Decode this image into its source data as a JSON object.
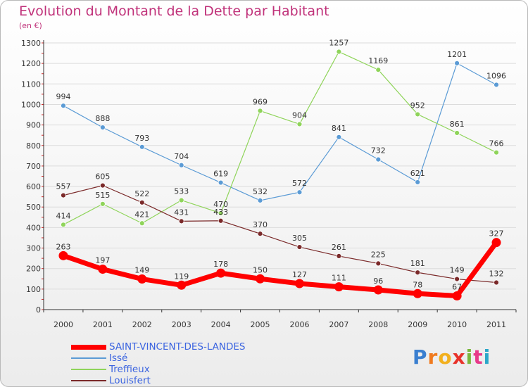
{
  "chart_data": {
    "type": "line",
    "title": "Evolution du Montant de la Dette par Habitant",
    "subtitle": "(en €)",
    "x": [
      "2000",
      "2001",
      "2002",
      "2003",
      "2004",
      "2005",
      "2006",
      "2007",
      "2008",
      "2009",
      "2010",
      "2011"
    ],
    "yticks": [
      0,
      100,
      200,
      300,
      400,
      500,
      600,
      700,
      800,
      900,
      1000,
      1100,
      1200,
      1300
    ],
    "ylim": [
      0,
      1300
    ],
    "grid": "horizontal",
    "legend_position": "bottom-left",
    "series": [
      {
        "name": "SAINT-VINCENT-DES-LANDES",
        "color": "#ff0000",
        "values": [
          263,
          197,
          149,
          119,
          178,
          150,
          127,
          111,
          96,
          78,
          67,
          327
        ],
        "labels": [
          "263",
          "197",
          "149",
          "119",
          "178",
          "150",
          "127",
          "111",
          "96",
          "78",
          "67",
          "327"
        ]
      },
      {
        "name": "Issé",
        "color": "#5b9bd5",
        "values": [
          994,
          888,
          793,
          704,
          619,
          532,
          572,
          841,
          732,
          621,
          1201,
          1096
        ],
        "labels": [
          "994",
          "888",
          "793",
          "704",
          "619",
          "532",
          "572",
          "841",
          "732",
          "621",
          "1201",
          "1096"
        ]
      },
      {
        "name": "Treffieux",
        "color": "#8fd45a",
        "values": [
          414,
          515,
          421,
          533,
          470,
          969,
          904,
          1257,
          1169,
          952,
          861,
          766
        ],
        "labels": [
          "414",
          "515",
          "421",
          "533",
          "470",
          "969",
          "904",
          "1257",
          "1169",
          "952",
          "861",
          "766"
        ]
      },
      {
        "name": "Louisfert",
        "color": "#7b2a2a",
        "values": [
          557,
          605,
          522,
          431,
          433,
          370,
          305,
          261,
          225,
          181,
          149,
          132
        ],
        "labels": [
          "557",
          "605",
          "522",
          "431",
          "433",
          "370",
          "305",
          "261",
          "225",
          "181",
          "149",
          "132"
        ]
      }
    ]
  },
  "logo": {
    "text": "Proxiti",
    "letters": [
      "P",
      "r",
      "o",
      "x",
      "i",
      "t",
      "i"
    ],
    "colors": [
      "#3a7fd0",
      "#f07a1e",
      "#f2b01e",
      "#e8322a",
      "#7ab73c",
      "#e83a8a",
      "#2aa7c9"
    ]
  }
}
